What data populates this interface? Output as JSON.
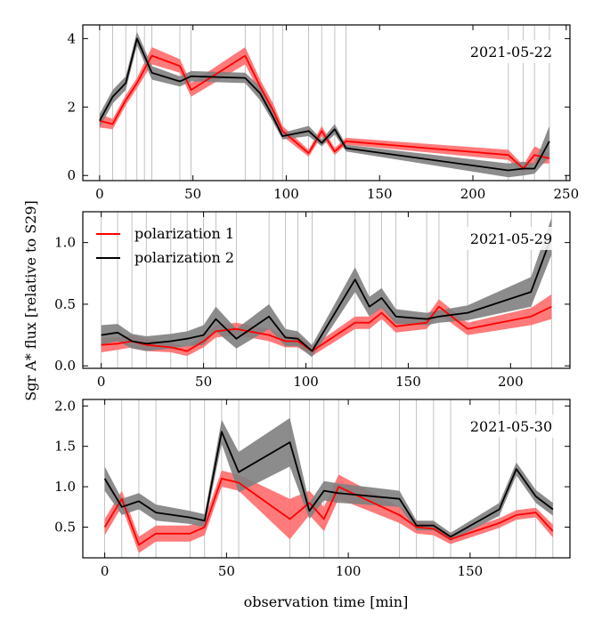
{
  "figure": {
    "ylabel": "Sgr A* flux [relative to S29]",
    "xlabel": "observation time [min]",
    "legend": [
      "polarization 1",
      "polarization 2"
    ]
  },
  "colors": {
    "pol1_line": "#ff0000",
    "pol1_band": "#ff6b6b",
    "pol2_line": "#000000",
    "pol2_band": "#7f7f7f",
    "vline": "#b4b4b4"
  },
  "chart_data": [
    {
      "type": "line",
      "title": "2021-05-22",
      "xlim": [
        -9,
        252
      ],
      "ylim": [
        -0.15,
        4.4
      ],
      "xticks": [
        0,
        50,
        100,
        150,
        200,
        250
      ],
      "yticks": [
        0,
        2,
        4
      ],
      "vlines": [
        0,
        7,
        14,
        20,
        24,
        28,
        43,
        49,
        78,
        86,
        93,
        98,
        112,
        119,
        126,
        132,
        219,
        227,
        233,
        241
      ],
      "series": [
        {
          "name": "polarization 1",
          "x": [
            0,
            7,
            14,
            20,
            28,
            43,
            49,
            78,
            86,
            93,
            98,
            112,
            119,
            126,
            132,
            219,
            227,
            233,
            241
          ],
          "y": [
            1.6,
            1.5,
            2.2,
            2.7,
            3.5,
            3.2,
            2.5,
            3.5,
            2.6,
            1.9,
            1.3,
            0.65,
            1.3,
            0.7,
            1.0,
            0.6,
            0.2,
            0.6,
            0.5
          ],
          "band": [
            0.2,
            0.15,
            0.15,
            0.15,
            0.25,
            0.2,
            0.2,
            0.25,
            0.2,
            0.2,
            0.15,
            0.1,
            0.15,
            0.1,
            0.1,
            0.15,
            0.1,
            0.25,
            0.15
          ]
        },
        {
          "name": "polarization 2",
          "x": [
            0,
            7,
            14,
            20,
            24,
            28,
            43,
            49,
            78,
            86,
            93,
            98,
            112,
            119,
            126,
            132,
            219,
            227,
            233,
            241
          ],
          "y": [
            1.6,
            2.3,
            2.7,
            4.0,
            3.5,
            3.0,
            2.75,
            2.9,
            2.85,
            2.4,
            1.7,
            1.15,
            1.3,
            0.95,
            1.35,
            0.8,
            0.15,
            0.2,
            0.2,
            1.0
          ],
          "band": [
            0.2,
            0.2,
            0.2,
            0.2,
            0.2,
            0.2,
            0.15,
            0.15,
            0.15,
            0.2,
            0.15,
            0.1,
            0.15,
            0.1,
            0.15,
            0.1,
            0.2,
            0.2,
            0.15,
            0.45
          ]
        }
      ]
    },
    {
      "type": "line",
      "title": "2021-05-29",
      "xlim": [
        -9,
        229
      ],
      "ylim": [
        -0.02,
        1.25
      ],
      "xticks": [
        0,
        50,
        100,
        150,
        200
      ],
      "yticks": [
        0.0,
        0.5,
        1.0
      ],
      "vlines": [
        0,
        8,
        15,
        22,
        34,
        42,
        50,
        56,
        66,
        82,
        90,
        96,
        103,
        124,
        131,
        137,
        144,
        159,
        165,
        179,
        210,
        220
      ],
      "series": [
        {
          "name": "polarization 1",
          "x": [
            0,
            8,
            15,
            22,
            34,
            42,
            50,
            56,
            66,
            82,
            90,
            96,
            103,
            124,
            131,
            137,
            144,
            159,
            165,
            179,
            210,
            220
          ],
          "y": [
            0.17,
            0.18,
            0.2,
            0.17,
            0.15,
            0.12,
            0.2,
            0.28,
            0.3,
            0.25,
            0.2,
            0.2,
            0.12,
            0.35,
            0.35,
            0.43,
            0.32,
            0.35,
            0.48,
            0.3,
            0.4,
            0.48
          ],
          "band": [
            0.06,
            0.05,
            0.05,
            0.05,
            0.04,
            0.04,
            0.05,
            0.05,
            0.05,
            0.05,
            0.05,
            0.05,
            0.04,
            0.05,
            0.05,
            0.05,
            0.05,
            0.05,
            0.06,
            0.05,
            0.07,
            0.1
          ]
        },
        {
          "name": "polarization 2",
          "x": [
            0,
            8,
            15,
            22,
            34,
            42,
            50,
            56,
            66,
            82,
            90,
            96,
            103,
            124,
            131,
            137,
            144,
            159,
            165,
            179,
            210,
            220
          ],
          "y": [
            0.25,
            0.27,
            0.2,
            0.18,
            0.2,
            0.22,
            0.25,
            0.38,
            0.22,
            0.4,
            0.23,
            0.22,
            0.12,
            0.7,
            0.48,
            0.55,
            0.4,
            0.38,
            0.4,
            0.43,
            0.6,
            1.05
          ],
          "band": [
            0.08,
            0.07,
            0.06,
            0.06,
            0.06,
            0.06,
            0.08,
            0.1,
            0.08,
            0.1,
            0.07,
            0.06,
            0.05,
            0.1,
            0.08,
            0.08,
            0.06,
            0.05,
            0.05,
            0.06,
            0.12,
            0.15
          ]
        }
      ]
    },
    {
      "type": "line",
      "title": "2021-05-30",
      "xlim": [
        -9,
        191
      ],
      "ylim": [
        0.12,
        2.08
      ],
      "xticks": [
        0,
        50,
        100,
        150
      ],
      "yticks": [
        0.5,
        1.0,
        1.5,
        2.0
      ],
      "vlines": [
        0,
        7,
        14,
        21,
        35,
        41,
        48,
        55,
        76,
        84,
        90,
        96,
        121,
        128,
        135,
        142,
        162,
        169,
        177,
        184
      ],
      "series": [
        {
          "name": "polarization 1",
          "x": [
            0,
            7,
            14,
            21,
            35,
            41,
            48,
            55,
            76,
            84,
            90,
            96,
            121,
            128,
            135,
            142,
            162,
            169,
            177,
            184
          ],
          "y": [
            0.5,
            0.85,
            0.28,
            0.42,
            0.42,
            0.5,
            1.1,
            1.05,
            0.6,
            0.8,
            0.6,
            1.0,
            0.65,
            0.5,
            0.48,
            0.35,
            0.55,
            0.65,
            0.68,
            0.45
          ],
          "band": [
            0.1,
            0.1,
            0.1,
            0.1,
            0.1,
            0.1,
            0.1,
            0.1,
            0.25,
            0.15,
            0.15,
            0.15,
            0.1,
            0.08,
            0.08,
            0.06,
            0.06,
            0.06,
            0.06,
            0.08
          ]
        },
        {
          "name": "polarization 2",
          "x": [
            0,
            7,
            14,
            21,
            35,
            41,
            48,
            55,
            76,
            84,
            90,
            96,
            121,
            128,
            135,
            142,
            162,
            169,
            177,
            184
          ],
          "y": [
            1.1,
            0.75,
            0.82,
            0.68,
            0.62,
            0.58,
            1.68,
            1.18,
            1.55,
            0.7,
            0.95,
            0.92,
            0.85,
            0.52,
            0.52,
            0.38,
            0.72,
            1.22,
            0.88,
            0.72
          ],
          "band": [
            0.15,
            0.1,
            0.1,
            0.1,
            0.08,
            0.08,
            0.15,
            0.25,
            0.3,
            0.1,
            0.12,
            0.12,
            0.1,
            0.06,
            0.06,
            0.05,
            0.08,
            0.08,
            0.08,
            0.08
          ]
        }
      ]
    }
  ]
}
